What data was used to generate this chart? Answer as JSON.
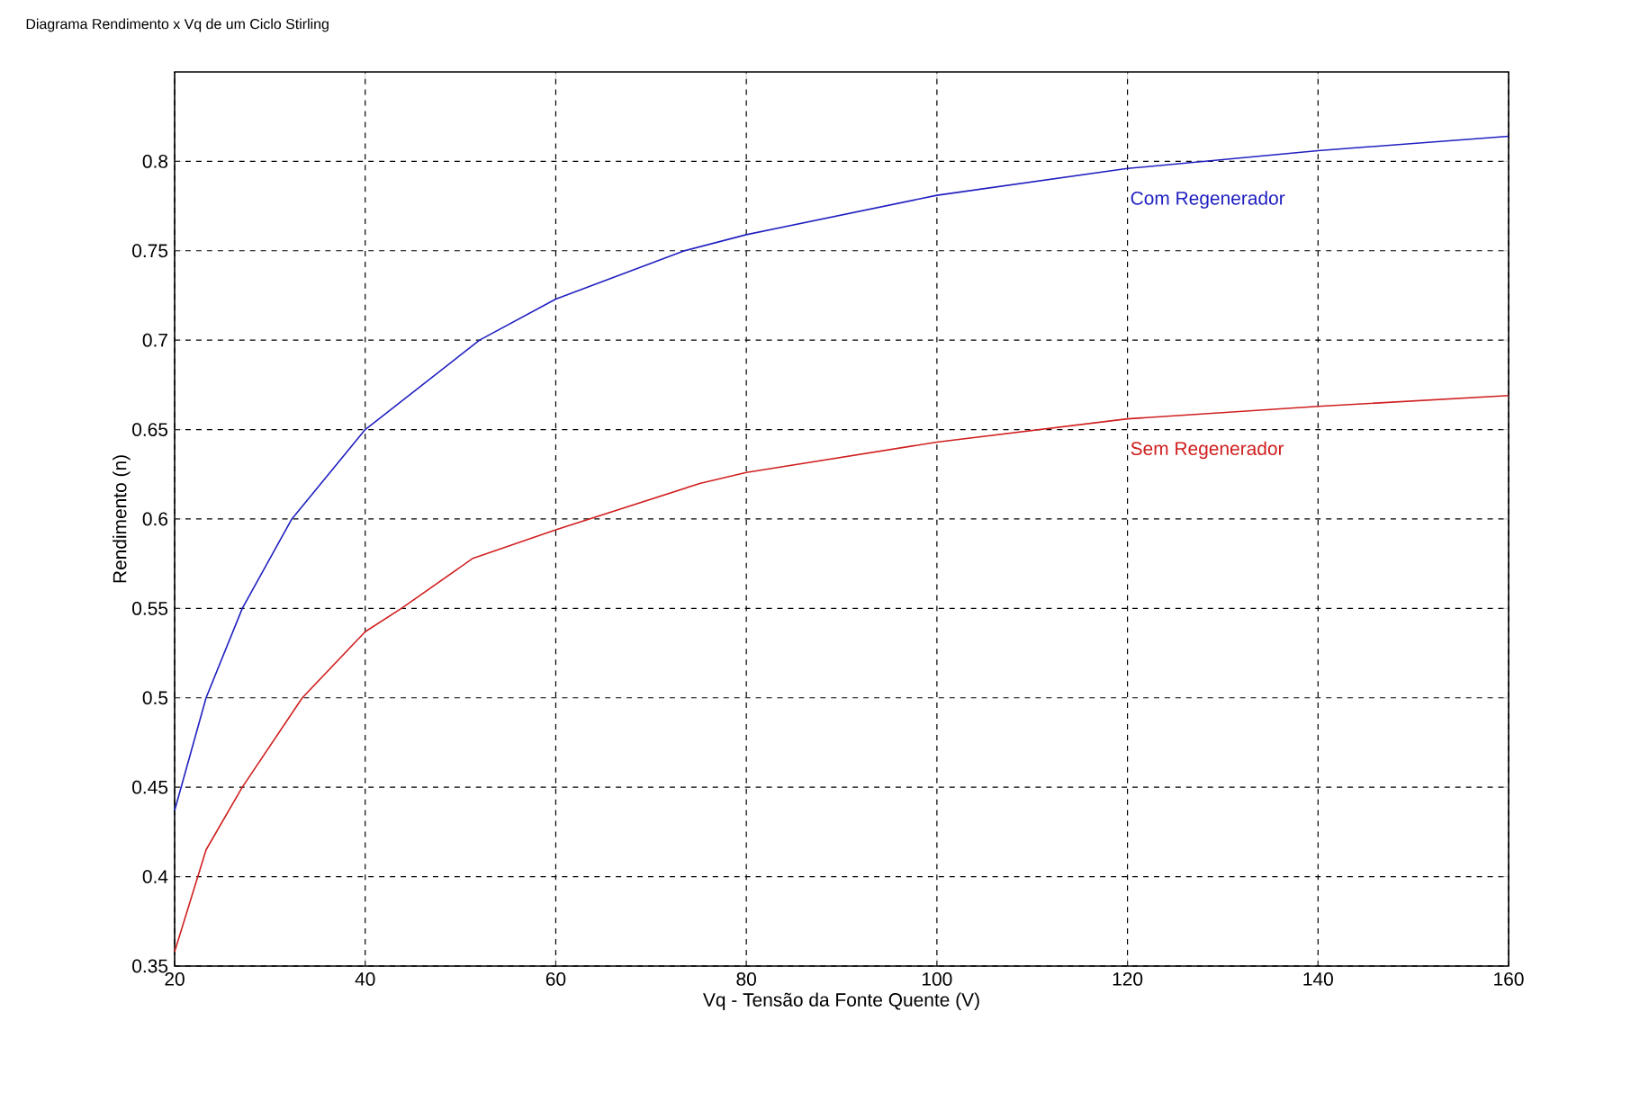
{
  "chart_data": {
    "type": "line",
    "title": "Diagrama Rendimento x Vq de um Ciclo Stirling",
    "xlabel": "Vq - Tensão da Fonte Quente (V)",
    "ylabel": "Rendimento (n)",
    "xlim": [
      20,
      160
    ],
    "xticks": [
      20,
      40,
      60,
      80,
      100,
      120,
      140,
      160
    ],
    "ylim": [
      0.35,
      0.85
    ],
    "yticks": [
      0.35,
      0.4,
      0.45,
      0.5,
      0.55,
      0.6,
      0.65,
      0.7,
      0.75,
      0.8
    ],
    "grid": true,
    "line_style": "solid",
    "series": [
      {
        "name": "Com Regenerador",
        "color": "#2020c0",
        "x": [
          20,
          23.3,
          27.1,
          32.3,
          40,
          52,
          60,
          73.5,
          80,
          100,
          120,
          140,
          160
        ],
        "values": [
          0.437,
          0.5,
          0.55,
          0.6,
          0.65,
          0.7,
          0.723,
          0.75,
          0.759,
          0.781,
          0.796,
          0.806,
          0.814
        ]
      },
      {
        "name": "Sem Regenerador",
        "color": "#d02020",
        "x": [
          20,
          23.3,
          27.1,
          33.4,
          40,
          43.8,
          51.3,
          60,
          75.2,
          80,
          100,
          120,
          140,
          160
        ],
        "values": [
          0.358,
          0.415,
          0.45,
          0.5,
          0.537,
          0.55,
          0.578,
          0.594,
          0.62,
          0.626,
          0.643,
          0.656,
          0.663,
          0.669
        ]
      }
    ]
  }
}
